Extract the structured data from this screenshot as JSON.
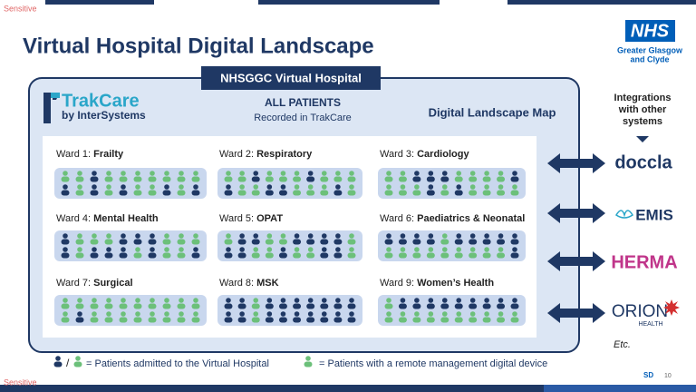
{
  "header": {
    "sensitive": "Sensitive",
    "title": "Virtual Hospital Digital Landscape"
  },
  "logo": {
    "nhs": "NHS",
    "org_line1": "Greater Glasgow",
    "org_line2": "and Clyde"
  },
  "panel": {
    "tab": "NHSGGC Virtual Hospital",
    "brand": "TrakCare",
    "brand_sub": "by InterSystems",
    "heading": "ALL PATIENTS",
    "subheading": "Recorded in TrakCare",
    "map_title": "Digital Landscape Map"
  },
  "wards": [
    {
      "prefix": "Ward 1:",
      "name": "Frailty"
    },
    {
      "prefix": "Ward 2:",
      "name": "Respiratory"
    },
    {
      "prefix": "Ward 3:",
      "name": "Cardiology"
    },
    {
      "prefix": "Ward 4:",
      "name": "Mental Health"
    },
    {
      "prefix": "Ward 5:",
      "name": "OPAT"
    },
    {
      "prefix": "Ward 6:",
      "name": "Paediatrics & Neonatal"
    },
    {
      "prefix": "Ward 7:",
      "name": "Surgical"
    },
    {
      "prefix": "Ward 8:",
      "name": "MSK"
    },
    {
      "prefix": "Ward 9:",
      "name": "Women’s Health"
    }
  ],
  "integrations": {
    "heading": [
      "Integrations",
      "with other",
      "systems"
    ],
    "systems": [
      "doccla",
      "EMIS",
      "HERMA",
      "ORION",
      "HEALTH"
    ],
    "etc": "Etc."
  },
  "legend": {
    "separator": "/",
    "admitted": "= Patients admitted to the Virtual Hospital",
    "remote": "= Patients with a remote management digital device"
  },
  "footer": {
    "initials": "SD",
    "page": "10",
    "sensitive": "Sensitive"
  }
}
